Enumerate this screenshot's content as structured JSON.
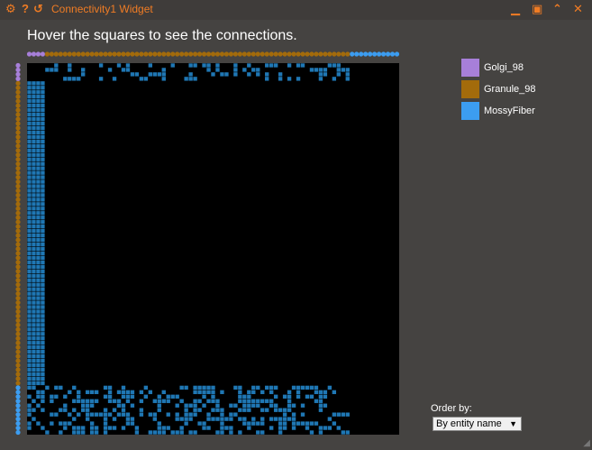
{
  "window": {
    "title": "Connectivity1 Widget",
    "settings_icon": "gear-icon",
    "help_icon": "help-icon",
    "refresh_icon": "refresh-icon",
    "minimize_icon": "minimize-icon",
    "maximize_icon": "maximize-icon",
    "collapse_icon": "collapse-icon",
    "close_icon": "close-icon"
  },
  "instructions": "Hover the squares to see the connections.",
  "legend": [
    {
      "label": "Golgi_98",
      "color": "#a77fd9"
    },
    {
      "label": "Granule_98",
      "color": "#a36b0b"
    },
    {
      "label": "MossyFiber",
      "color": "#3c9df0"
    }
  ],
  "order": {
    "label": "Order by:",
    "selected": "By entity name"
  },
  "colors": {
    "background": "#454341",
    "matrix_bg": "#000000",
    "cell": "#1f77b4",
    "accent": "#f07c24"
  },
  "chart_data": {
    "type": "heatmap",
    "populations": [
      {
        "name": "Golgi_98",
        "count": 4
      },
      {
        "name": "Granule_98",
        "count": 68
      },
      {
        "name": "MossyFiber",
        "count": 11
      }
    ],
    "connections": [
      {
        "from": "MossyFiber",
        "to": "Granule_98"
      },
      {
        "from": "Granule_98",
        "to": "Golgi_98"
      },
      {
        "from": "Golgi_98",
        "to": "Granule_98"
      },
      {
        "from": "MossyFiber",
        "to": "Golgi_98"
      }
    ]
  }
}
